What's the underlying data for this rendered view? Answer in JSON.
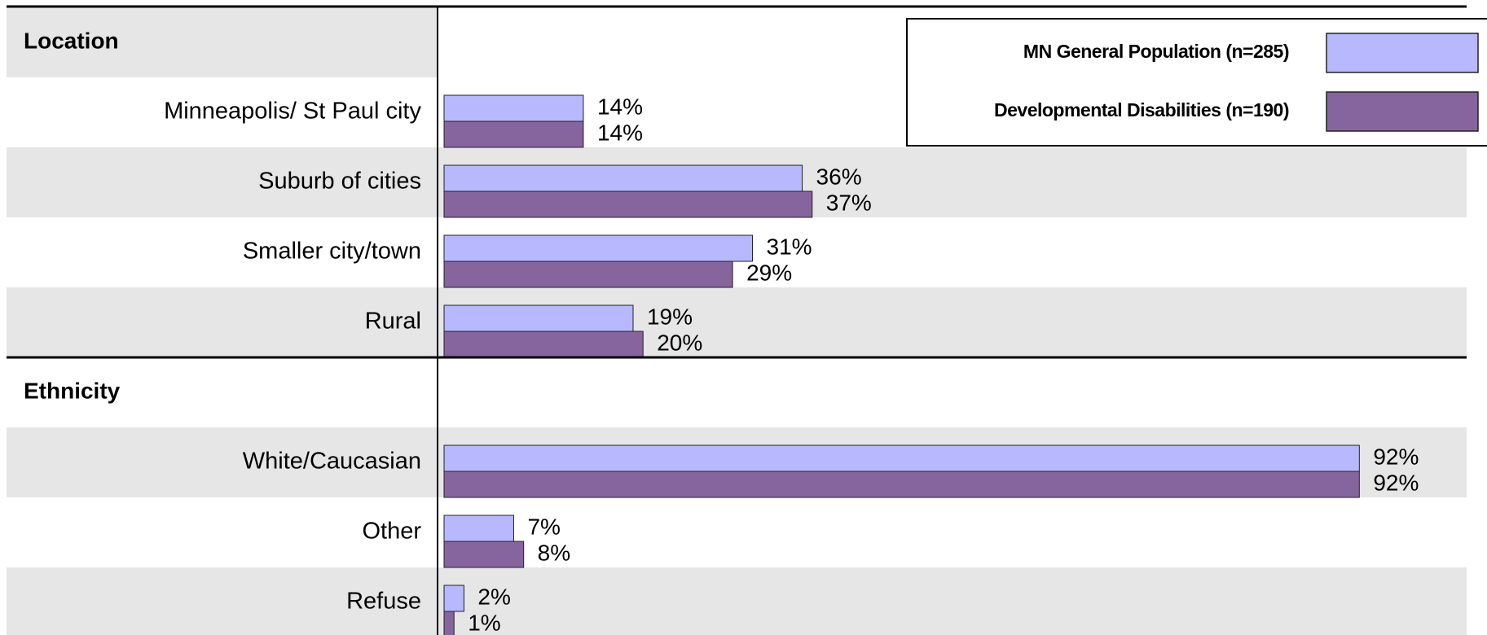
{
  "chart_data": {
    "type": "bar",
    "orientation": "horizontal",
    "section_titles": [
      "Location",
      "Ethnicity"
    ],
    "categories": [
      [
        "Minneapolis/ St Paul city",
        "Suburb of cities",
        "Smaller city/town",
        "Rural"
      ],
      [
        "White/Caucasian",
        "Other",
        "Refuse"
      ]
    ],
    "series": [
      {
        "name": "MN General Population (n=285)",
        "color": "#b8b8ff",
        "values": [
          [
            14,
            36,
            31,
            19
          ],
          [
            92,
            7,
            2
          ]
        ],
        "value_labels": [
          [
            "14%",
            "36%",
            "31%",
            "19%"
          ],
          [
            "92%",
            "7%",
            "2%"
          ]
        ]
      },
      {
        "name": "Developmental Disabilities (n=190)",
        "color": "#86659e",
        "values": [
          [
            14,
            37,
            29,
            20
          ],
          [
            92,
            8,
            1
          ]
        ],
        "value_labels": [
          [
            "14%",
            "37%",
            "29%",
            "20%"
          ],
          [
            "92%",
            "8%",
            "1%"
          ]
        ]
      }
    ]
  }
}
